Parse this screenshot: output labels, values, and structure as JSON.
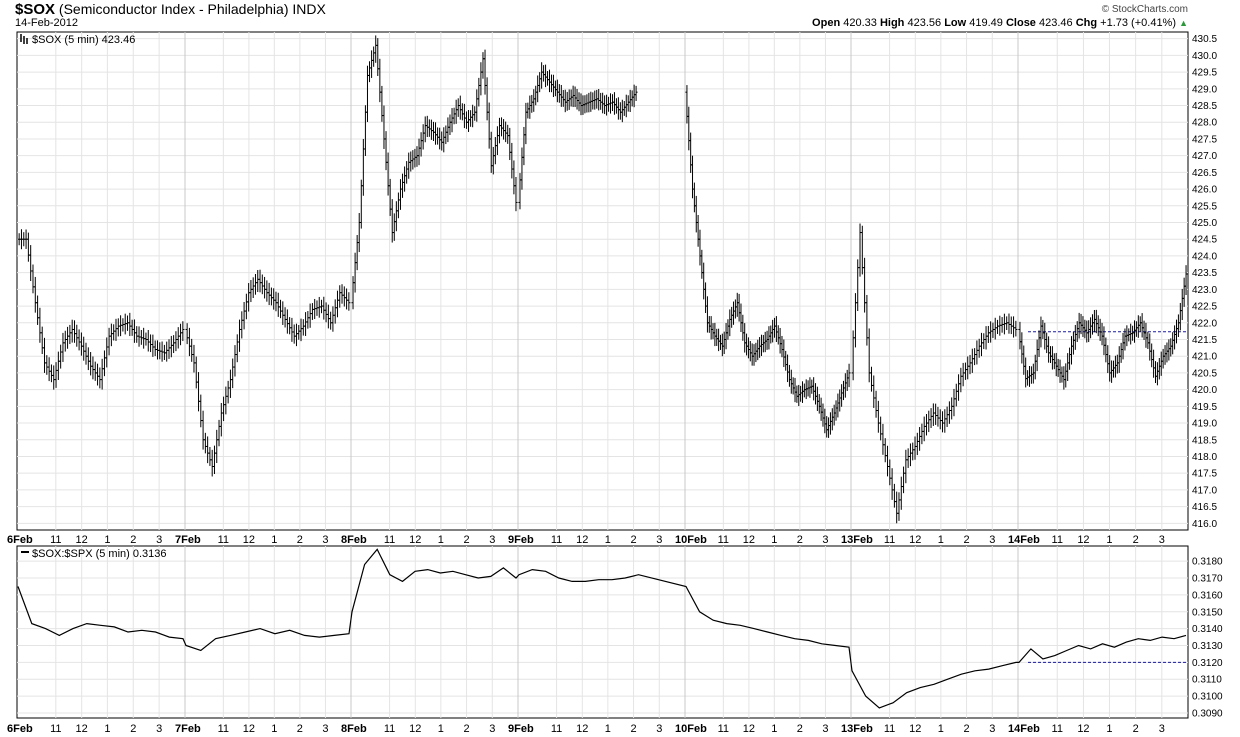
{
  "header": {
    "symbol": "$SOX",
    "description": "(Semiconductor Index - Philadelphia)",
    "exchange": "INDX",
    "date": "14-Feb-2012",
    "copyright": "© StockCharts.com",
    "open_label": "Open",
    "open": "420.33",
    "high_label": "High",
    "high": "423.56",
    "low_label": "Low",
    "low": "419.49",
    "close_label": "Close",
    "close": "423.46",
    "chg_label": "Chg",
    "chg": "+1.73 (+0.41%)"
  },
  "colors": {
    "line": "#000000",
    "grid": "#e4e4e4",
    "dashed": "#1a1aa0",
    "up": "#2c9a3a"
  },
  "chart_data": [
    {
      "type": "line",
      "subtype": "ohlc-bars",
      "legend": "$SOX (5 min) 423.46",
      "ylim": [
        415.8,
        430.7
      ],
      "y_ticks": [
        "416.0",
        "416.5",
        "417.0",
        "417.5",
        "418.0",
        "418.5",
        "419.0",
        "419.5",
        "420.0",
        "420.5",
        "421.0",
        "421.5",
        "422.0",
        "422.5",
        "423.0",
        "423.5",
        "424.0",
        "424.5",
        "425.0",
        "425.5",
        "426.0",
        "426.5",
        "427.0",
        "427.5",
        "428.0",
        "428.5",
        "429.0",
        "429.5",
        "430.0",
        "430.5"
      ],
      "reference_line": 421.73,
      "x_labels": [
        "6Feb",
        "11",
        "12",
        "1",
        "2",
        "3",
        "7Feb",
        "11",
        "12",
        "1",
        "2",
        "3",
        "8Feb",
        "11",
        "12",
        "1",
        "2",
        "3",
        "9Feb",
        "11",
        "12",
        "1",
        "2",
        "3",
        "10Feb",
        "11",
        "12",
        "1",
        "2",
        "3",
        "13Feb",
        "11",
        "12",
        "1",
        "2",
        "3",
        "14Feb",
        "11",
        "12",
        "1",
        "2",
        "3"
      ],
      "days": [
        {
          "label": "6Feb",
          "values": [
            424.5,
            422.6,
            420.8,
            420.3,
            421.4,
            421.8,
            421.3,
            420.7,
            420.3,
            421.6,
            421.9,
            422.0,
            421.6,
            421.5,
            421.2,
            421.1,
            421.4,
            421.8
          ]
        },
        {
          "label": "7Feb",
          "values": [
            420.8,
            418.5,
            417.7,
            419.3,
            420.3,
            421.8,
            422.9,
            423.3,
            422.9,
            422.6,
            422.1,
            421.6,
            421.9,
            422.4,
            422.5,
            422.0,
            422.9,
            422.6
          ]
        },
        {
          "label": "8Feb",
          "values": [
            425.0,
            429.4,
            430.3,
            427.5,
            424.7,
            426.0,
            426.8,
            427.0,
            427.9,
            427.7,
            427.4,
            428.0,
            428.5,
            428.0,
            428.3,
            429.9,
            426.7,
            427.9,
            427.6,
            425.6
          ]
        },
        {
          "label": "9Feb",
          "values": [
            428.3,
            428.7,
            429.5,
            429.2,
            428.9,
            428.6,
            428.8,
            428.5,
            428.6,
            428.7,
            428.5,
            428.6,
            428.3,
            428.6,
            428.9
          ]
        },
        {
          "label": "10Feb",
          "values": [
            426.0,
            424.0,
            422.0,
            421.6,
            421.3,
            422.1,
            422.6,
            421.4,
            421.0,
            421.3,
            421.5,
            421.9,
            421.2,
            420.3,
            419.8,
            420.0,
            420.1,
            419.5,
            418.8,
            419.3,
            419.9,
            420.5
          ]
        },
        {
          "label": "13Feb",
          "values": [
            424.7,
            420.5,
            419.0,
            417.7,
            416.3,
            417.9,
            418.3,
            418.9,
            419.3,
            419.0,
            419.5,
            420.4,
            420.8,
            421.3,
            421.7,
            421.9,
            422.0,
            421.8
          ]
        },
        {
          "label": "14Feb",
          "values": [
            420.33,
            420.5,
            421.9,
            421.1,
            420.7,
            420.3,
            421.3,
            422.0,
            421.7,
            422.1,
            421.6,
            420.5,
            420.8,
            421.6,
            421.7,
            422.0,
            421.4,
            420.4,
            421.0,
            421.3,
            422.0,
            423.46
          ]
        }
      ]
    },
    {
      "type": "line",
      "legend": "$SOX:$SPX (5 min) 0.3136",
      "ylim": [
        0.3087,
        0.3189
      ],
      "y_ticks": [
        "0.3090",
        "0.3100",
        "0.3110",
        "0.3120",
        "0.3130",
        "0.3140",
        "0.3150",
        "0.3160",
        "0.3170",
        "0.3180"
      ],
      "reference_line": 0.312,
      "days": [
        {
          "label": "6Feb",
          "values": [
            0.3165,
            0.3143,
            0.314,
            0.3136,
            0.314,
            0.3143,
            0.3142,
            0.3141,
            0.3138,
            0.3139,
            0.3138,
            0.3135,
            0.3134
          ]
        },
        {
          "label": "7Feb",
          "values": [
            0.313,
            0.3127,
            0.3134,
            0.3136,
            0.3138,
            0.314,
            0.3137,
            0.3139,
            0.3136,
            0.3135,
            0.3136,
            0.3137
          ]
        },
        {
          "label": "8Feb",
          "values": [
            0.315,
            0.3178,
            0.3187,
            0.3172,
            0.3168,
            0.3174,
            0.3175,
            0.3173,
            0.3174,
            0.3172,
            0.317,
            0.3171,
            0.3176,
            0.317
          ]
        },
        {
          "label": "9Feb",
          "values": [
            0.3172,
            0.3175,
            0.3174,
            0.317,
            0.3168,
            0.3168,
            0.3169,
            0.3169,
            0.317,
            0.3172
          ]
        },
        {
          "label": "10Feb",
          "values": [
            0.3165,
            0.315,
            0.3145,
            0.3143,
            0.3142,
            0.314,
            0.3138,
            0.3136,
            0.3134,
            0.3133,
            0.3131,
            0.313,
            0.3129
          ]
        },
        {
          "label": "13Feb",
          "values": [
            0.3115,
            0.31,
            0.3093,
            0.3096,
            0.3102,
            0.3105,
            0.3107,
            0.311,
            0.3113,
            0.3115,
            0.3116,
            0.3118,
            0.312
          ]
        },
        {
          "label": "14Feb",
          "values": [
            0.312,
            0.3128,
            0.3122,
            0.3124,
            0.3127,
            0.313,
            0.3128,
            0.3131,
            0.3129,
            0.3132,
            0.3134,
            0.3133,
            0.3135,
            0.3134,
            0.3136
          ]
        }
      ]
    }
  ]
}
